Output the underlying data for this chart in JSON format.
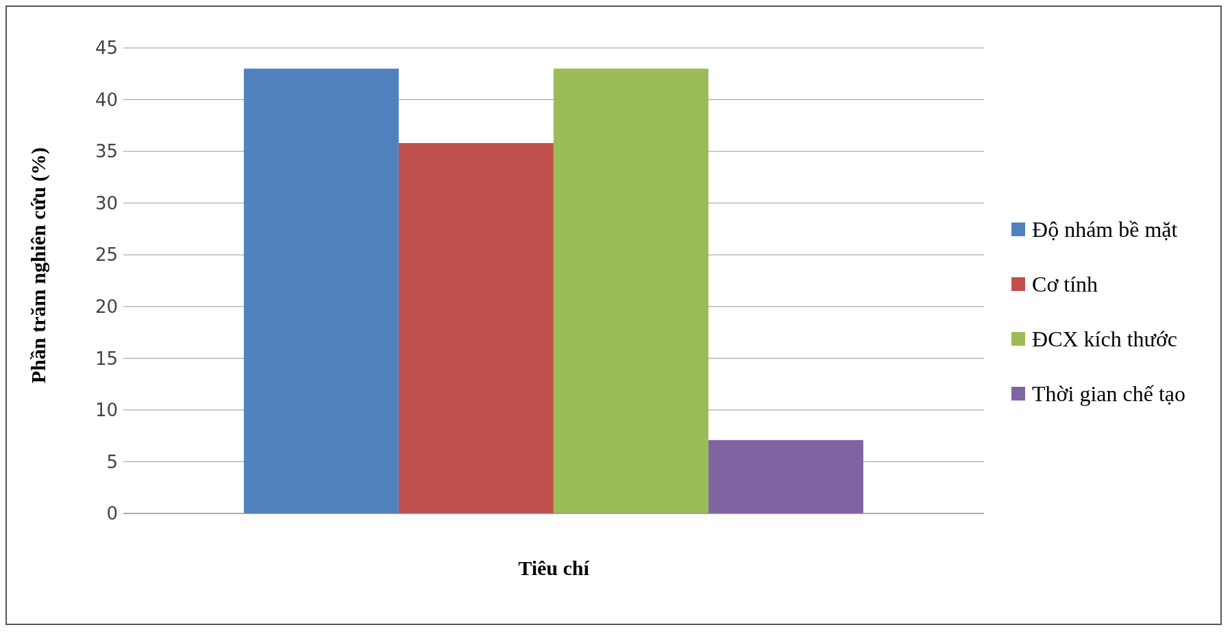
{
  "chart_data": {
    "type": "bar",
    "xlabel": "Tiêu chí",
    "ylabel": "Phần trăm nghiên cứu (%)",
    "categories": [
      null
    ],
    "series": [
      {
        "name": "Độ nhám bề mặt",
        "color": "#4f81bd",
        "values": [
          43
        ]
      },
      {
        "name": "Cơ tính",
        "color": "#c0504d",
        "values": [
          35.8
        ]
      },
      {
        "name": "ĐCX kích thước",
        "color": "#9bbb59",
        "values": [
          43
        ]
      },
      {
        "name": "Thời gian chế tạo",
        "color": "#8064a2",
        "values": [
          7.1
        ]
      }
    ],
    "ylim": [
      0,
      45
    ],
    "yticks": [
      0,
      5,
      10,
      15,
      20,
      25,
      30,
      35,
      40,
      45
    ],
    "grid": "y",
    "legend": "right"
  }
}
